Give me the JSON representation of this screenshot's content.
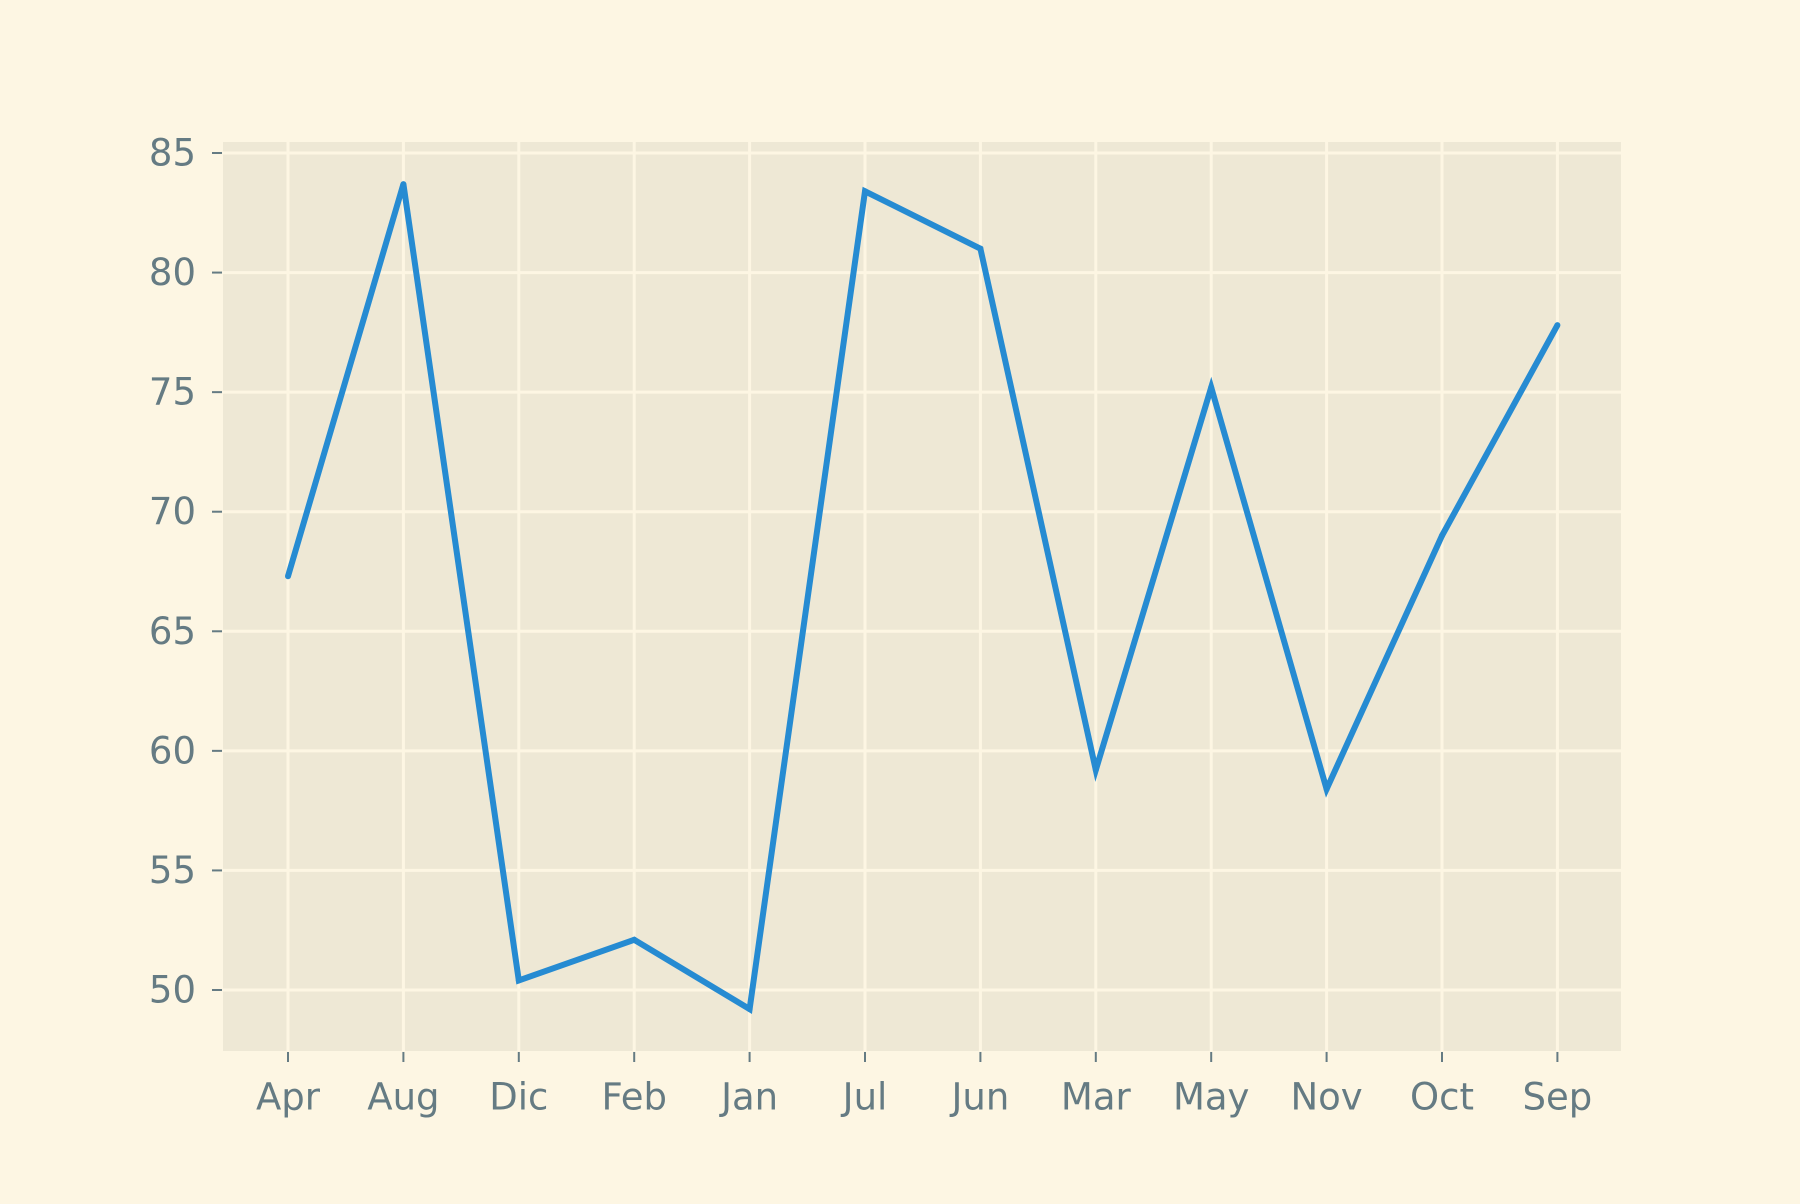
{
  "chart_data": {
    "type": "line",
    "title": "",
    "xlabel": "",
    "ylabel": "",
    "categories": [
      "Apr",
      "Aug",
      "Dic",
      "Feb",
      "Jan",
      "Jul",
      "Jun",
      "Mar",
      "May",
      "Nov",
      "Oct",
      "Sep"
    ],
    "series": [
      {
        "values": [
          67.3,
          83.7,
          50.4,
          52.1,
          49.2,
          83.4,
          81.0,
          59.2,
          75.2,
          58.4,
          69.0,
          77.8
        ]
      }
    ],
    "ylim": [
      47.4,
      85.5
    ],
    "yticks": [
      50,
      55,
      60,
      65,
      70,
      75,
      80,
      85
    ],
    "grid": true,
    "legend": "none",
    "colors": {
      "figure_background": "#fdf6e3",
      "plot_background": "#eee8d5",
      "grid": "#fdf6e3",
      "line": "#268bd2",
      "tick_label": "#657b83",
      "tick_mark": "#657b83"
    }
  }
}
